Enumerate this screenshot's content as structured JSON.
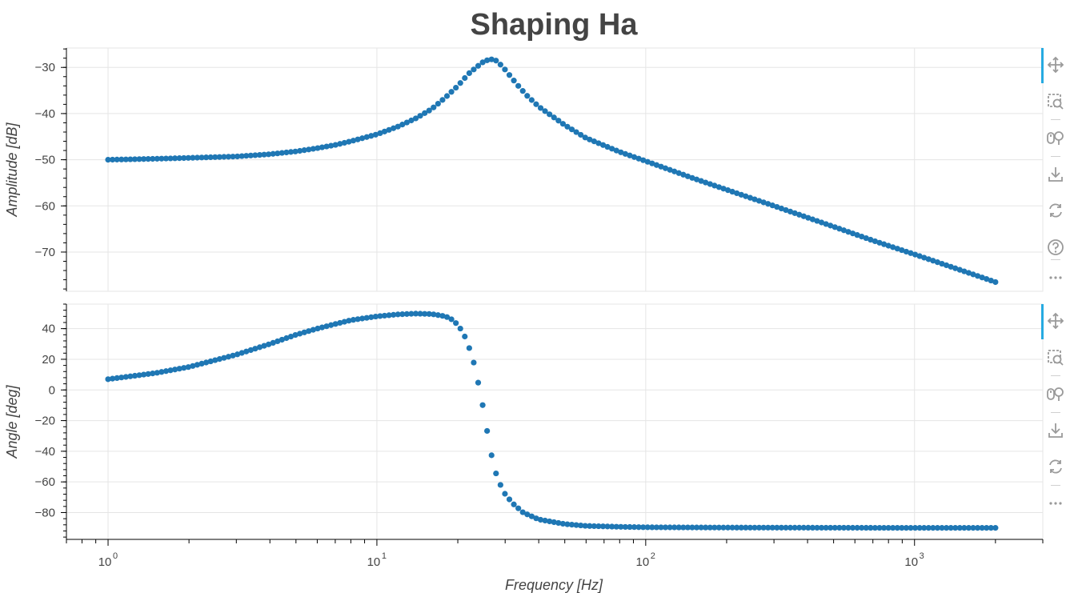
{
  "chart_data": {
    "type": "scatter",
    "title": "Shaping Ha",
    "xlabel": "Frequency [Hz]",
    "x_scale": "log",
    "xlim": [
      0.7,
      3000
    ],
    "x_major_ticks": [
      1,
      10,
      100,
      1000
    ],
    "x_tick_labels": [
      {
        "base": "10",
        "exp": "0"
      },
      {
        "base": "10",
        "exp": "1"
      },
      {
        "base": "10",
        "exp": "2"
      },
      {
        "base": "10",
        "exp": "3"
      }
    ],
    "grid": true,
    "marker_color": "#1f77b4",
    "panels": [
      {
        "ylabel": "Amplitude [dB]",
        "ylim": [
          -78.5,
          -25.8
        ],
        "yticks": [
          -30,
          -40,
          -50,
          -60,
          -70
        ],
        "ytick_labels": [
          "−30",
          "−40",
          "−50",
          "−60",
          "−70"
        ],
        "series": [
          {
            "x": [
              1,
              1.5,
              2,
              3,
              4,
              5,
              6,
              7,
              8,
              10,
              12,
              14,
              16,
              18,
              20,
              22,
              24,
              25,
              26.5,
              28,
              30,
              33,
              36,
              40,
              50,
              60,
              80,
              100,
              150,
              200,
              300,
              500,
              700,
              1000,
              1500,
              2000
            ],
            "y": [
              -50,
              -49.8,
              -49.6,
              -49.3,
              -48.8,
              -48.2,
              -47.5,
              -46.8,
              -46.0,
              -44.5,
              -42.8,
              -41.0,
              -39.0,
              -36.5,
              -34.0,
              -31.3,
              -29.5,
              -28.7,
              -28.2,
              -28.6,
              -30.5,
              -33.5,
              -36.0,
              -38.5,
              -42.5,
              -45.3,
              -48.3,
              -50.3,
              -54.0,
              -56.5,
              -60.0,
              -64.5,
              -67.5,
              -70.5,
              -74.0,
              -76.5
            ]
          }
        ]
      },
      {
        "ylabel": "Angle [deg]",
        "ylim": [
          -97.5,
          56
        ],
        "yticks": [
          40,
          20,
          0,
          -20,
          -40,
          -60,
          -80
        ],
        "ytick_labels": [
          "40",
          "20",
          "0",
          "−20",
          "−40",
          "−60",
          "−80"
        ],
        "series": [
          {
            "x": [
              1,
              1.5,
              2,
              3,
              4,
              5,
              6,
              7,
              8,
              10,
              12,
              14,
              16,
              18,
              19,
              20,
              21,
              22,
              23,
              24,
              25,
              26,
              27,
              28,
              29,
              30,
              32,
              35,
              40,
              50,
              60,
              80,
              100,
              200,
              500,
              1000,
              2000
            ],
            "y": [
              7,
              11,
              15,
              23,
              30,
              36,
              40,
              43,
              45.5,
              48,
              49.3,
              49.8,
              49.5,
              48,
              46,
              42.5,
              37,
              28,
              17,
              2,
              -14,
              -32,
              -47,
              -57,
              -63,
              -68,
              -74,
              -80,
              -84.5,
              -87.5,
              -88.7,
              -89.3,
              -89.6,
              -89.8,
              -89.9,
              -90,
              -90
            ]
          }
        ]
      }
    ]
  },
  "toolbar": {
    "tools": [
      "pan-icon",
      "box-zoom-icon",
      "wheel-zoom-icon",
      "save-icon",
      "reset-icon",
      "help-icon",
      "more-icon"
    ],
    "accent_color": "#26aae1",
    "icon_color": "#9a9a9a"
  }
}
